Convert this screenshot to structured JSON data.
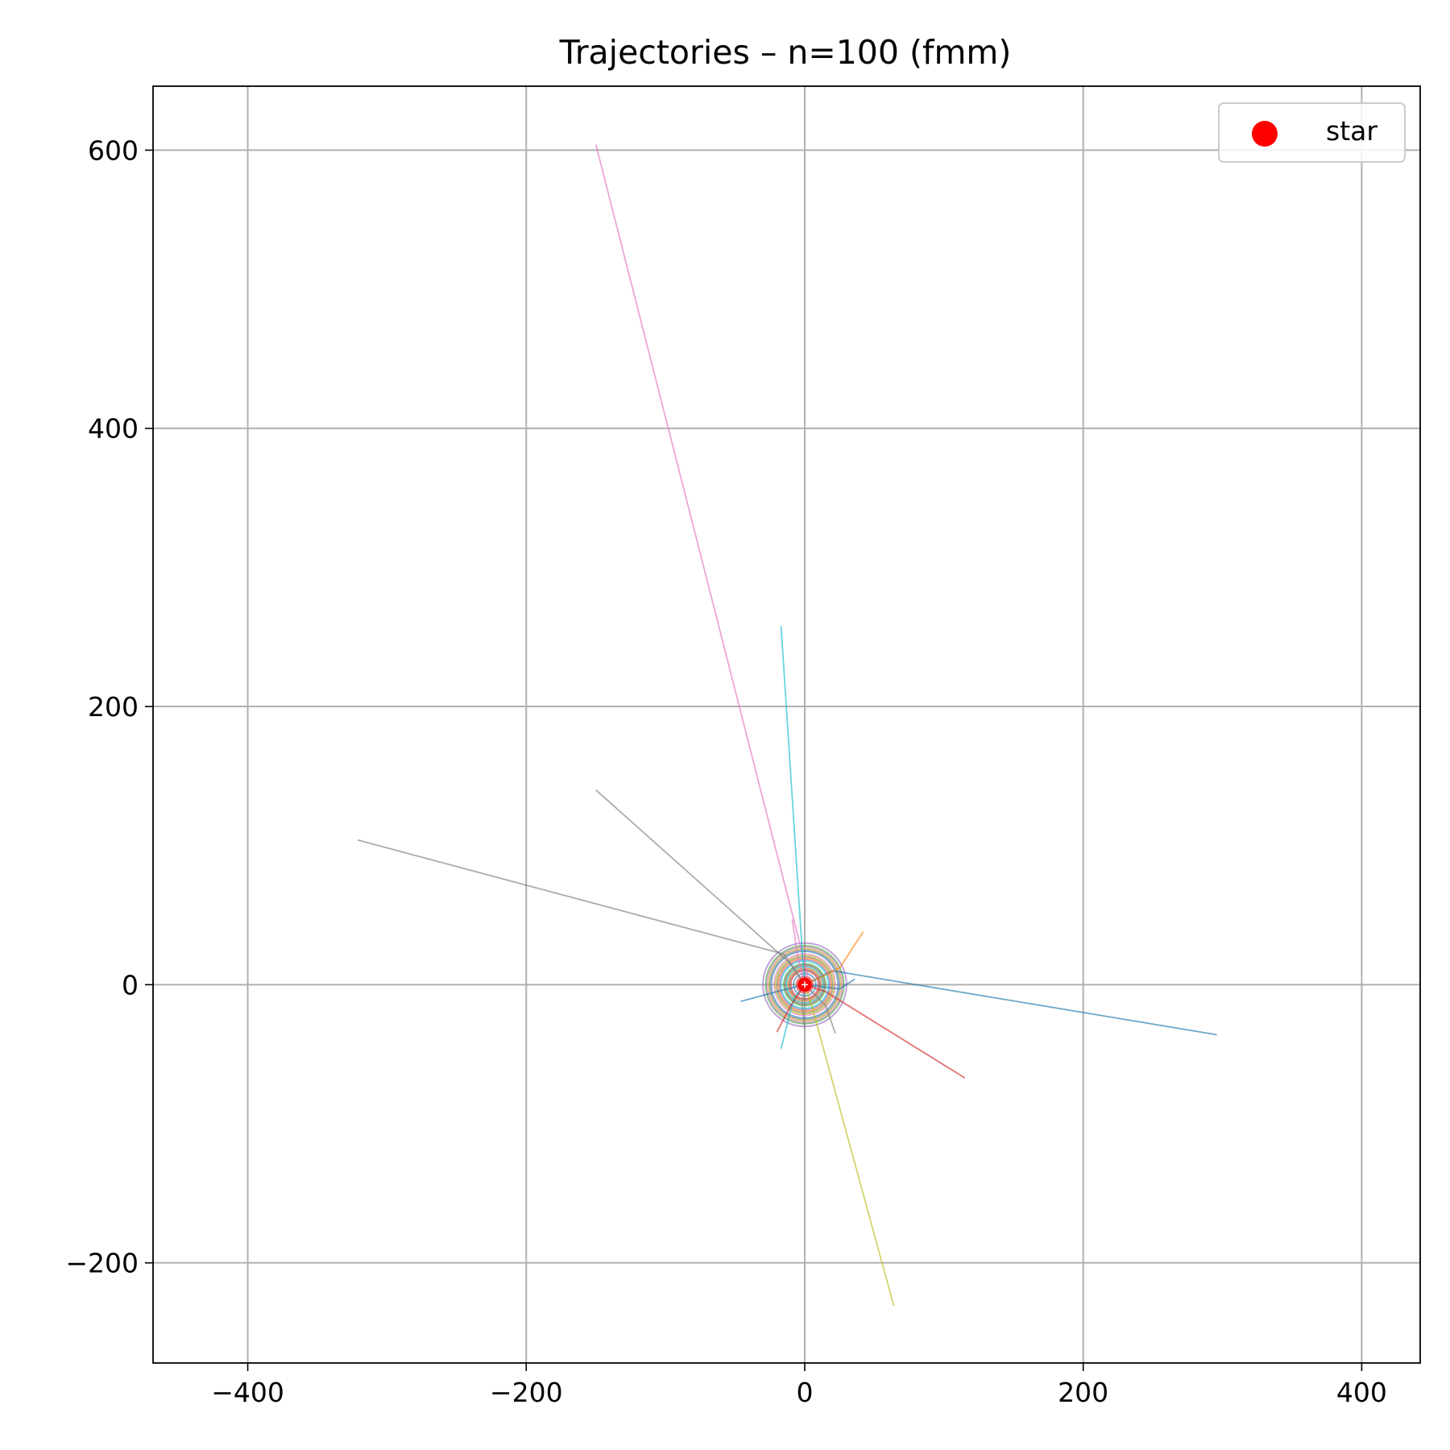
{
  "chart_data": {
    "type": "line",
    "title": "Trajectories – n=100 (fmm)",
    "xlabel": "",
    "ylabel": "",
    "xlim": [
      -468,
      442
    ],
    "ylim": [
      -272,
      646
    ],
    "xticks": [
      -400,
      -200,
      0,
      200,
      400
    ],
    "yticks": [
      -200,
      0,
      200,
      400,
      600
    ],
    "xtick_labels": [
      "−400",
      "−200",
      "0",
      "200",
      "400"
    ],
    "ytick_labels": [
      "−200",
      "0",
      "200",
      "400",
      "600"
    ],
    "grid": true,
    "legend": {
      "position": "top-right",
      "entries": [
        {
          "label": "star",
          "marker": "circle",
          "color": "#ff0000"
        }
      ]
    },
    "star": {
      "x": 0,
      "y": 0,
      "color": "#ff0000"
    },
    "series": [
      {
        "color": "#e377c2",
        "points": [
          [
            0,
            0
          ],
          [
            2,
            8
          ],
          [
            -150,
            604
          ]
        ]
      },
      {
        "color": "#17becf",
        "points": [
          [
            0,
            0
          ],
          [
            -1,
            12
          ],
          [
            -17,
            258
          ]
        ]
      },
      {
        "color": "#7f7f7f",
        "points": [
          [
            0,
            0
          ],
          [
            -15,
            22
          ],
          [
            -321,
            104
          ]
        ]
      },
      {
        "color": "#7f7f7f",
        "points": [
          [
            0,
            0
          ],
          [
            -10,
            15
          ],
          [
            -150,
            140
          ]
        ]
      },
      {
        "color": "#1f77b4",
        "points": [
          [
            0,
            0
          ],
          [
            20,
            10
          ],
          [
            296,
            -36
          ]
        ]
      },
      {
        "color": "#d62728",
        "points": [
          [
            0,
            0
          ],
          [
            15,
            -5
          ],
          [
            115,
            -67
          ]
        ]
      },
      {
        "color": "#bcbd22",
        "points": [
          [
            0,
            0
          ],
          [
            5,
            -15
          ],
          [
            64,
            -231
          ]
        ]
      },
      {
        "color": "#ff7f0e",
        "points": [
          [
            0,
            0
          ],
          [
            25,
            12
          ],
          [
            42,
            38
          ]
        ]
      },
      {
        "color": "#17becf",
        "points": [
          [
            0,
            0
          ],
          [
            -8,
            -10
          ],
          [
            -17,
            -46
          ]
        ]
      },
      {
        "color": "#1f77b4",
        "points": [
          [
            0,
            0
          ],
          [
            -20,
            -5
          ],
          [
            -46,
            -12
          ]
        ]
      },
      {
        "color": "#d62728",
        "points": [
          [
            0,
            0
          ],
          [
            -10,
            -15
          ],
          [
            -20,
            -34
          ]
        ]
      },
      {
        "color": "#7f7f7f",
        "points": [
          [
            0,
            0
          ],
          [
            15,
            -15
          ],
          [
            22,
            -35
          ]
        ]
      },
      {
        "color": "#e377c2",
        "points": [
          [
            0,
            0
          ],
          [
            -5,
            20
          ],
          [
            -9,
            47
          ]
        ]
      },
      {
        "color": "#1f77b4",
        "points": [
          [
            0,
            0
          ],
          [
            25,
            -3
          ],
          [
            36,
            4
          ]
        ]
      },
      {
        "color": "#7f7f7f",
        "points": [
          [
            0,
            0
          ],
          [
            -2,
            -15
          ],
          [
            0,
            -32
          ]
        ]
      }
    ],
    "orbits": [
      {
        "color": "#1f77b4",
        "r": 8
      },
      {
        "color": "#ff7f0e",
        "r": 12
      },
      {
        "color": "#2ca02c",
        "r": 15
      },
      {
        "color": "#d62728",
        "r": 10
      },
      {
        "color": "#9467bd",
        "r": 18
      },
      {
        "color": "#8c564b",
        "r": 14
      },
      {
        "color": "#e377c2",
        "r": 22
      },
      {
        "color": "#7f7f7f",
        "r": 20
      },
      {
        "color": "#bcbd22",
        "r": 26
      },
      {
        "color": "#17becf",
        "r": 17
      },
      {
        "color": "#1f77b4",
        "r": 24
      },
      {
        "color": "#ff7f0e",
        "r": 19
      },
      {
        "color": "#2ca02c",
        "r": 28
      },
      {
        "color": "#d62728",
        "r": 6
      },
      {
        "color": "#9467bd",
        "r": 30
      },
      {
        "color": "#8c564b",
        "r": 11
      },
      {
        "color": "#e377c2",
        "r": 27
      },
      {
        "color": "#bcbd22",
        "r": 21
      },
      {
        "color": "#17becf",
        "r": 13
      },
      {
        "color": "#7f7f7f",
        "r": 25
      }
    ]
  }
}
